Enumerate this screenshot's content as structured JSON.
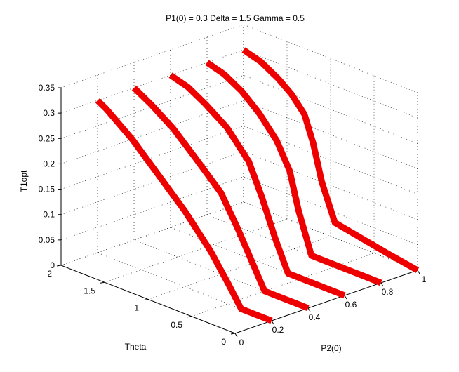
{
  "title": "P1(0) = 0.3 Delta = 1.5 Gamma = 0.5",
  "chart_data": {
    "type": "line",
    "projection": "3d",
    "title": "P1(0) = 0.3 Delta = 1.5 Gamma = 0.5",
    "xlabel": "P2(0)",
    "ylabel": "Theta",
    "zlabel": "T1opt",
    "xlim": [
      0,
      1
    ],
    "ylim": [
      0,
      2
    ],
    "zlim": [
      0,
      0.35
    ],
    "xticks": [
      "0",
      "0.2",
      "0.4",
      "0.6",
      "0.8",
      "1"
    ],
    "yticks": [
      "0",
      "0.5",
      "1",
      "1.5",
      "2"
    ],
    "zticks": [
      "0",
      "0.05",
      "0.1",
      "0.15",
      "0.2",
      "0.25",
      "0.3",
      "0.35"
    ],
    "grid": true,
    "marker": "x",
    "color": "#ee0000",
    "series": [
      {
        "p2": 0.2,
        "theta": [
          2.0,
          1.9,
          1.6,
          1.3,
          1.0,
          0.7,
          0.5,
          0.35,
          0.2,
          0.05,
          0.0
        ],
        "t1opt": [
          0.3,
          0.29,
          0.25,
          0.2,
          0.15,
          0.09,
          0.04,
          0.0,
          0.0,
          0.0,
          0.0
        ]
      },
      {
        "p2": 0.4,
        "theta": [
          2.0,
          1.8,
          1.55,
          1.3,
          1.0,
          0.8,
          0.65,
          0.5,
          0.3,
          0.1,
          0.0
        ],
        "t1opt": [
          0.3,
          0.28,
          0.25,
          0.21,
          0.16,
          0.1,
          0.05,
          0.0,
          0.0,
          0.0,
          0.0
        ]
      },
      {
        "p2": 0.6,
        "theta": [
          2.0,
          1.8,
          1.6,
          1.35,
          1.1,
          0.95,
          0.8,
          0.65,
          0.4,
          0.2,
          0.0
        ],
        "t1opt": [
          0.3,
          0.29,
          0.27,
          0.24,
          0.19,
          0.13,
          0.06,
          0.0,
          0.0,
          0.0,
          0.0
        ]
      },
      {
        "p2": 0.8,
        "theta": [
          2.0,
          1.8,
          1.6,
          1.4,
          1.2,
          1.05,
          0.95,
          0.8,
          0.55,
          0.3,
          0.0
        ],
        "t1opt": [
          0.3,
          0.29,
          0.27,
          0.24,
          0.2,
          0.15,
          0.08,
          0.0,
          0.0,
          0.0,
          0.0
        ]
      },
      {
        "p2": 1.0,
        "theta": [
          2.0,
          1.8,
          1.6,
          1.45,
          1.3,
          1.2,
          1.1,
          0.95,
          0.65,
          0.35,
          0.0
        ],
        "t1opt": [
          0.3,
          0.29,
          0.27,
          0.25,
          0.22,
          0.17,
          0.1,
          0.03,
          0.02,
          0.01,
          0.0
        ]
      }
    ]
  }
}
